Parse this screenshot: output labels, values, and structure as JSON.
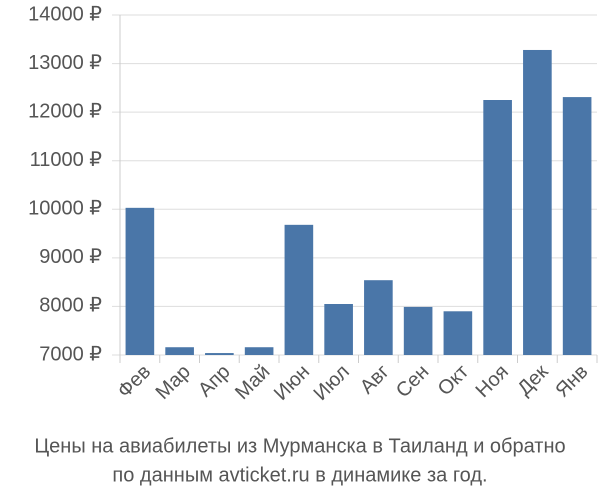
{
  "chart_data": {
    "type": "bar",
    "caption": [
      "Цены на авиабилеты из Мурманска в Таиланд и обратно",
      "по данным avticket.ru в динамике за год."
    ],
    "categories": [
      "Фев",
      "Мар",
      "Апр",
      "Май",
      "Июн",
      "Июл",
      "Авг",
      "Сен",
      "Окт",
      "Ноя",
      "Дек",
      "Янв"
    ],
    "values": [
      10030,
      7160,
      7040,
      7160,
      9680,
      8050,
      8540,
      7990,
      7900,
      12250,
      13280,
      12310
    ],
    "color": "#4a76a8",
    "ylim": [
      7000,
      14000
    ],
    "yticks": [
      {
        "value": 7000,
        "label": "7000 ₽"
      },
      {
        "value": 8000,
        "label": "8000 ₽"
      },
      {
        "value": 9000,
        "label": "9000 ₽"
      },
      {
        "value": 10000,
        "label": "10000 ₽"
      },
      {
        "value": 11000,
        "label": "11000 ₽"
      },
      {
        "value": 12000,
        "label": "12000 ₽"
      },
      {
        "value": 13000,
        "label": "13000 ₽"
      },
      {
        "value": 14000,
        "label": "14000 ₽"
      }
    ],
    "grid": true
  }
}
